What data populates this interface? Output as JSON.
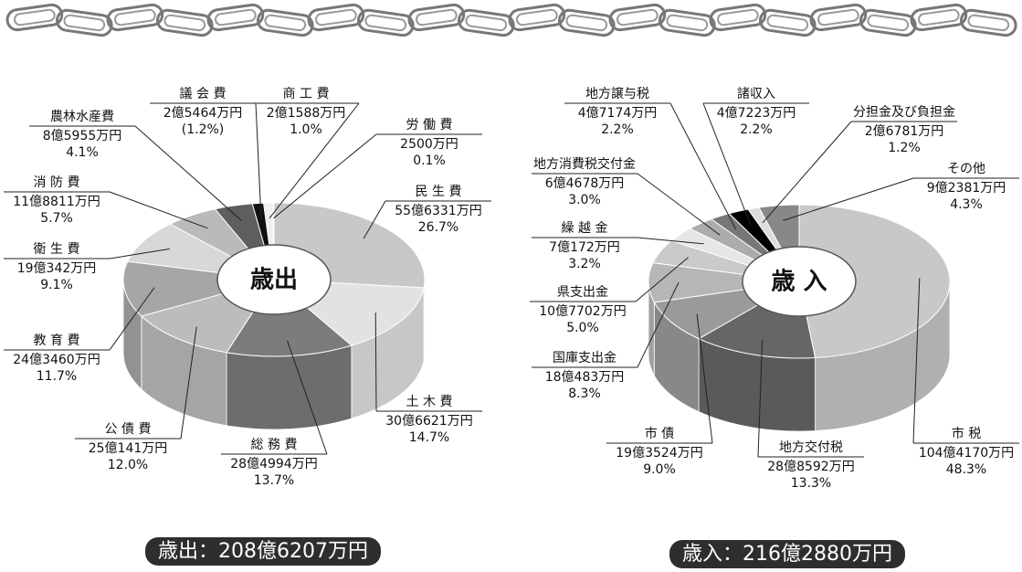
{
  "chart_data": [
    {
      "type": "pie",
      "center_label": "歳出",
      "total": "歳出：208億6207万円",
      "categories": [
        "民 生 費",
        "土 木 費",
        "総 務 費",
        "公 債 費",
        "教 育 費",
        "衛 生 費",
        "消 防 費",
        "農林水産費",
        "議 会 費",
        "商 工 費",
        "労 働 費"
      ],
      "amounts": [
        "55億6331万円",
        "30億6621万円",
        "28億4994万円",
        "25億141万円",
        "24億3460万円",
        "19億342万円",
        "11億8811万円",
        "8億5955万円",
        "2億5464万円",
        "2億1588万円",
        "2500万円"
      ],
      "values": [
        26.7,
        14.7,
        13.7,
        12.0,
        11.7,
        9.1,
        5.7,
        4.1,
        1.2,
        1.0,
        0.1
      ],
      "value_labels": [
        "26.7%",
        "14.7%",
        "13.7%",
        "12.0%",
        "11.7%",
        "9.1%",
        "5.7%",
        "4.1%",
        "(1.2%)",
        "1.0%",
        "0.1%"
      ],
      "colors": [
        "#c8c8c8",
        "#e2e2e2",
        "#7c7c7c",
        "#bcbcbc",
        "#a6a6a6",
        "#d8d8d8",
        "#bababa",
        "#5e5e5e",
        "#111111",
        "#f0f0f0",
        "#9a9a9a"
      ]
    },
    {
      "type": "pie",
      "center_label": "歳 入",
      "total": "歳入：216億2880万円",
      "categories": [
        "市 税",
        "地方交付税",
        "市 債",
        "国庫支出金",
        "県支出金",
        "繰 越 金",
        "地方消費税交付金",
        "地方譲与税",
        "諸収入",
        "分担金及び負担金",
        "その他"
      ],
      "amounts": [
        "104億4170万円",
        "28億8592万円",
        "19億3524万円",
        "18億483万円",
        "10億7702万円",
        "7億172万円",
        "6億4678万円",
        "4億7174万円",
        "4億7223万円",
        "2億6781万円",
        "9億2381万円"
      ],
      "values": [
        48.3,
        13.3,
        9.0,
        8.3,
        5.0,
        3.2,
        3.0,
        2.2,
        2.2,
        1.2,
        4.3
      ],
      "value_labels": [
        "48.3%",
        "13.3%",
        "9.0%",
        "8.3%",
        "5.0%",
        "3.2%",
        "3.0%",
        "2.2%",
        "2.2%",
        "1.2%",
        "4.3%"
      ],
      "colors": [
        "#c8c8c8",
        "#666666",
        "#9a9a9a",
        "#b6b6b6",
        "#cacaca",
        "#e6e6e6",
        "#acacac",
        "#777777",
        "#000000",
        "#dddddd",
        "#888888"
      ]
    }
  ]
}
